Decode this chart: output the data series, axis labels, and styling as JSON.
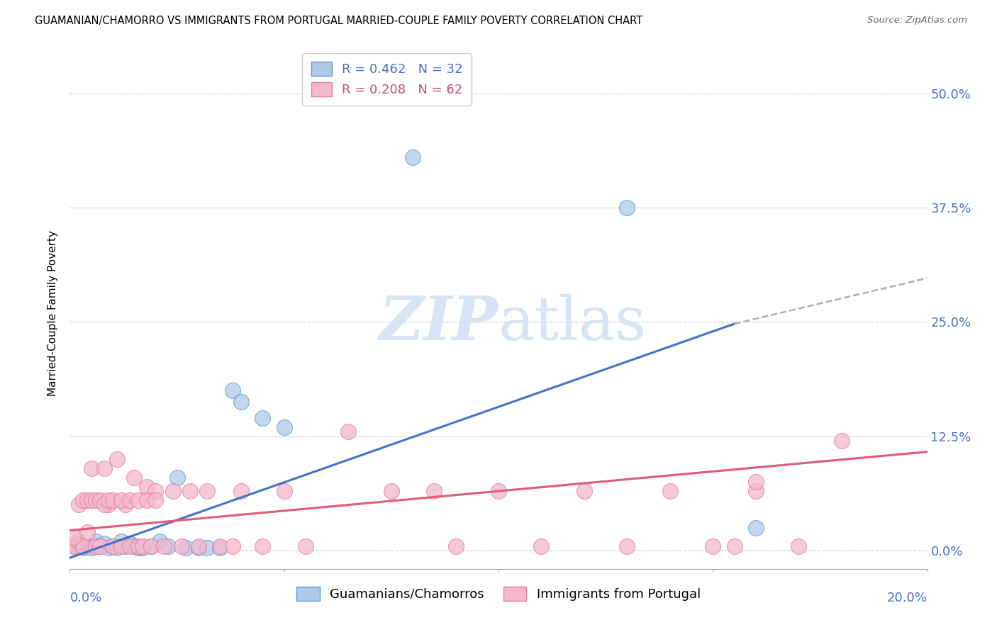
{
  "title": "GUAMANIAN/CHAMORRO VS IMMIGRANTS FROM PORTUGAL MARRIED-COUPLE FAMILY POVERTY CORRELATION CHART",
  "source": "Source: ZipAtlas.com",
  "ylabel": "Married-Couple Family Poverty",
  "ytick_labels": [
    "0.0%",
    "12.5%",
    "25.0%",
    "37.5%",
    "50.0%"
  ],
  "ytick_values": [
    0.0,
    0.125,
    0.25,
    0.375,
    0.5
  ],
  "xlim": [
    0.0,
    0.2
  ],
  "ylim": [
    -0.02,
    0.54
  ],
  "legend_blue_R": "R = 0.462",
  "legend_blue_N": "N = 32",
  "legend_pink_R": "R = 0.208",
  "legend_pink_N": "N = 62",
  "blue_color": "#aec9e8",
  "pink_color": "#f4b8cb",
  "blue_edge_color": "#5b9bd5",
  "pink_edge_color": "#e8799a",
  "blue_line_color": "#4472c4",
  "pink_line_color": "#e05a7a",
  "dash_color": "#b0b0b0",
  "watermark_color": "#d6e4f5",
  "label_blue": "Guamanians/Chamorros",
  "label_pink": "Immigrants from Portugal",
  "blue_line_x0": 0.0,
  "blue_line_y0": -0.008,
  "blue_line_x1": 0.155,
  "blue_line_y1": 0.248,
  "dash_line_x0": 0.155,
  "dash_line_y0": 0.248,
  "dash_line_x1": 0.2,
  "dash_line_y1": 0.298,
  "pink_line_x0": 0.0,
  "pink_line_y0": 0.022,
  "pink_line_x1": 0.2,
  "pink_line_y1": 0.108,
  "blue_x": [
    0.001,
    0.002,
    0.003,
    0.004,
    0.005,
    0.006,
    0.007,
    0.008,
    0.009,
    0.01,
    0.011,
    0.012,
    0.013,
    0.014,
    0.015,
    0.016,
    0.017,
    0.019,
    0.021,
    0.023,
    0.025,
    0.027,
    0.03,
    0.032,
    0.035,
    0.038,
    0.04,
    0.045,
    0.05,
    0.08,
    0.13,
    0.16
  ],
  "blue_y": [
    0.005,
    0.008,
    0.003,
    0.005,
    0.003,
    0.01,
    0.005,
    0.008,
    0.003,
    0.005,
    0.003,
    0.01,
    0.005,
    0.008,
    0.005,
    0.003,
    0.003,
    0.005,
    0.01,
    0.005,
    0.08,
    0.003,
    0.003,
    0.003,
    0.003,
    0.175,
    0.163,
    0.145,
    0.135,
    0.43,
    0.375,
    0.025
  ],
  "pink_x": [
    0.001,
    0.002,
    0.003,
    0.004,
    0.005,
    0.006,
    0.007,
    0.008,
    0.009,
    0.01,
    0.011,
    0.012,
    0.013,
    0.014,
    0.015,
    0.016,
    0.017,
    0.018,
    0.019,
    0.02,
    0.022,
    0.024,
    0.026,
    0.028,
    0.03,
    0.032,
    0.035,
    0.038,
    0.04,
    0.045,
    0.05,
    0.055,
    0.065,
    0.075,
    0.085,
    0.09,
    0.1,
    0.11,
    0.12,
    0.13,
    0.14,
    0.15,
    0.155,
    0.16,
    0.17,
    0.18,
    0.001,
    0.002,
    0.003,
    0.004,
    0.005,
    0.006,
    0.007,
    0.008,
    0.009,
    0.01,
    0.012,
    0.014,
    0.016,
    0.018,
    0.02,
    0.16
  ],
  "pink_y": [
    0.005,
    0.01,
    0.005,
    0.02,
    0.09,
    0.005,
    0.005,
    0.09,
    0.05,
    0.005,
    0.1,
    0.005,
    0.05,
    0.005,
    0.08,
    0.005,
    0.005,
    0.07,
    0.005,
    0.065,
    0.005,
    0.065,
    0.005,
    0.065,
    0.005,
    0.065,
    0.005,
    0.005,
    0.065,
    0.005,
    0.065,
    0.005,
    0.13,
    0.065,
    0.065,
    0.005,
    0.065,
    0.005,
    0.065,
    0.005,
    0.065,
    0.005,
    0.005,
    0.065,
    0.005,
    0.12,
    0.015,
    0.05,
    0.055,
    0.055,
    0.055,
    0.055,
    0.055,
    0.05,
    0.055,
    0.055,
    0.055,
    0.055,
    0.055,
    0.055,
    0.055,
    0.075
  ]
}
